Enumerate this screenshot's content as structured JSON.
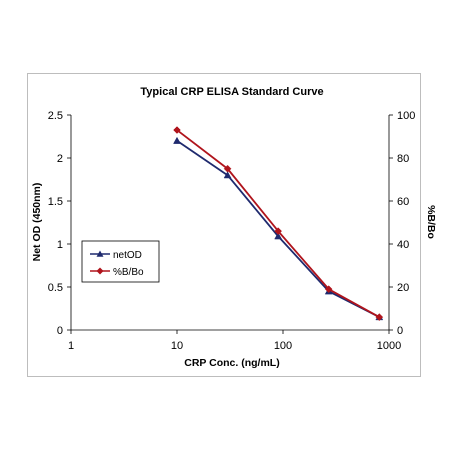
{
  "chart_data": {
    "type": "line",
    "title": "Typical CRP ELISA Standard Curve",
    "xlabel": "CRP Conc. (ng/mL)",
    "ylabel": "Net OD (450nm)",
    "y2label": "%B/Bo",
    "x_scale": "log",
    "xlim": [
      1,
      1000
    ],
    "ylim": [
      0,
      2.5
    ],
    "y2lim": [
      0,
      100
    ],
    "x_ticks": [
      "1",
      "10",
      "100",
      "1000"
    ],
    "y_ticks": [
      "0",
      "0.5",
      "1",
      "1.5",
      "2",
      "2.5"
    ],
    "y2_ticks": [
      "0",
      "20",
      "40",
      "60",
      "80",
      "100"
    ],
    "legend_position": "left-middle",
    "grid": false,
    "series": [
      {
        "name": "netOD",
        "axis": "left",
        "color": "#1f2a6e",
        "marker": "triangle",
        "x": [
          10,
          30,
          90,
          270,
          810
        ],
        "y": [
          2.2,
          1.8,
          1.09,
          0.45,
          0.15
        ]
      },
      {
        "name": "%B/Bo",
        "axis": "right",
        "color": "#b0141c",
        "marker": "diamond",
        "x": [
          10,
          30,
          90,
          270,
          810
        ],
        "y": [
          93,
          75,
          46,
          19,
          6
        ]
      }
    ]
  }
}
